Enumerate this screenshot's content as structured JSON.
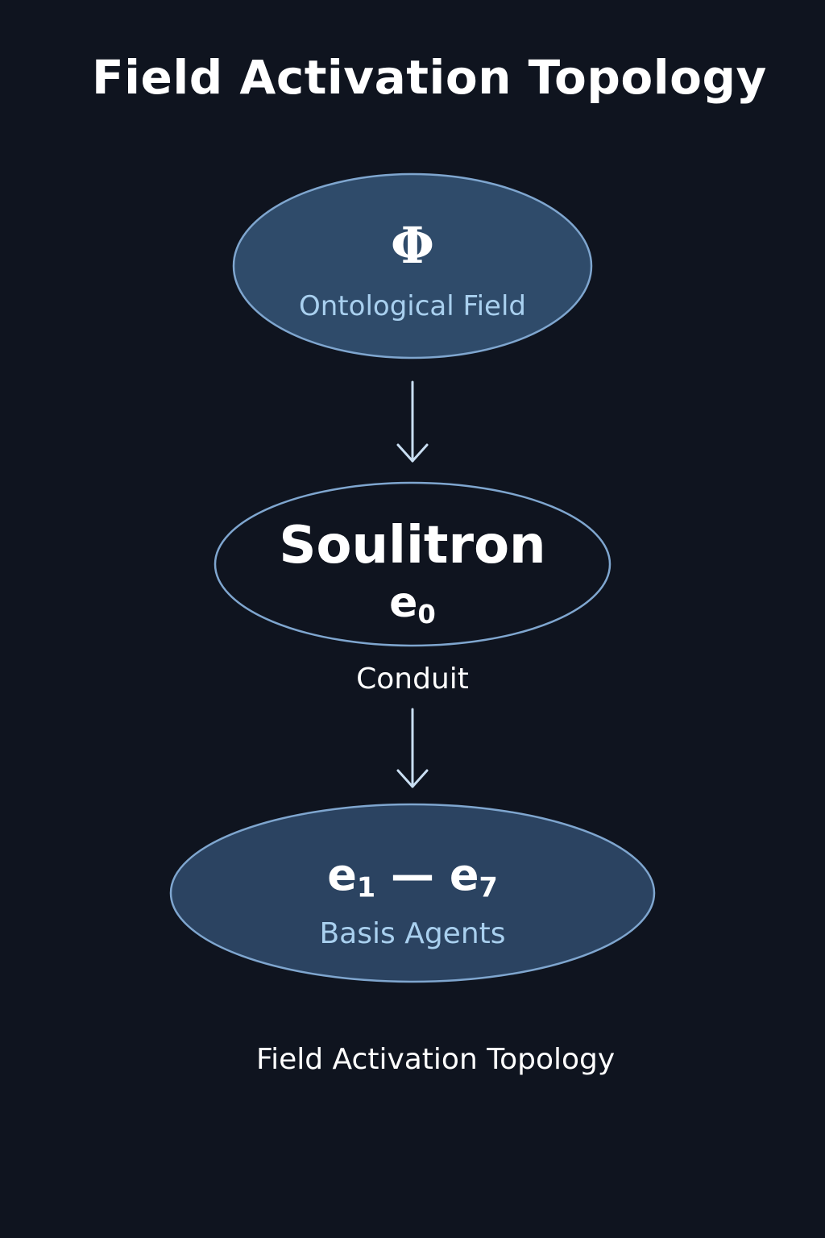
{
  "title": "Field Activation Topology",
  "nodes": {
    "ontological": {
      "symbol": "Φ",
      "label": "Ontological Field"
    },
    "soulitron": {
      "name": "Soulitron",
      "symbol_base": "e",
      "symbol_sub": "0"
    },
    "basis": {
      "symbol_start_base": "e",
      "symbol_start_sub": "1",
      "symbol_sep": "—",
      "symbol_end_base": "e",
      "symbol_end_sub": "7",
      "label": "Basis Agents"
    }
  },
  "edges": {
    "conduit_label": "Conduit"
  },
  "footer": "Field Activation Topology",
  "colors": {
    "background": "#0f141f",
    "node_fill": "#2f4b6a",
    "node_fill_dark": "#0f141f",
    "node_stroke": "#7fa6cf",
    "arrow": "#c9def2",
    "label_blue": "#a9d0ef",
    "text": "#ffffff"
  }
}
